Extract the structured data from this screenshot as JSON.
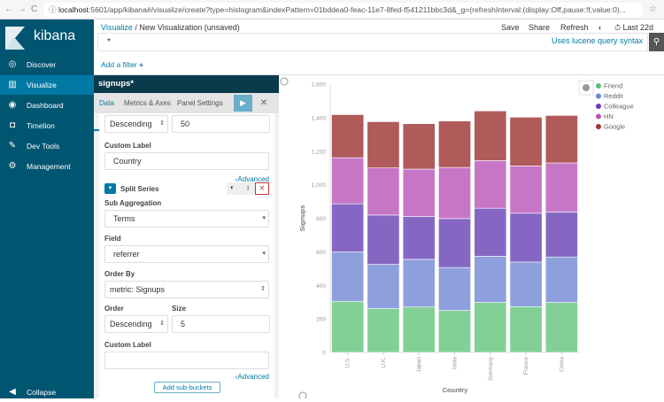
{
  "browser": {
    "url_host": "localhost",
    "url_rest": ":5601/app/kibana#/visualize/create?type=histogram&indexPattern=01bddea0-feac-11e7-8fed-f541211bbc3d&_g=(refreshInterval:(display:Off,pause:!f,value:0)..."
  },
  "sidebar": {
    "brand": "kibana",
    "items": [
      {
        "label": "Discover",
        "icon": "compass-icon"
      },
      {
        "label": "Visualize",
        "icon": "bar-chart-icon",
        "active": true
      },
      {
        "label": "Dashboard",
        "icon": "dashboard-icon"
      },
      {
        "label": "Timelion",
        "icon": "timelion-icon"
      },
      {
        "label": "Dev Tools",
        "icon": "wrench-icon"
      },
      {
        "label": "Management",
        "icon": "gear-icon"
      }
    ],
    "collapse": "Collapse"
  },
  "header": {
    "breadcrumb_link": "Visualize",
    "breadcrumb_sep": "/",
    "breadcrumb_current": "New Visualization (unsaved)",
    "save": "Save",
    "share": "Share",
    "refresh": "Refresh",
    "time": "Last 22d",
    "query": "*",
    "lucene": "Uses lucene query syntax",
    "add_filter": "Add a filter"
  },
  "editor": {
    "index": "signups*",
    "tabs": [
      "Data",
      "Metrics & Axes",
      "Panel Settings"
    ],
    "bucket1": {
      "order": "Descending",
      "size": "50",
      "custom_label_title": "Custom Label",
      "custom_label": "Country",
      "advanced": "Advanced"
    },
    "split": {
      "title": "Split Series",
      "sub_agg_label": "Sub Aggregation",
      "sub_agg": "Terms",
      "field_label": "Field",
      "field": "referrer",
      "order_by_label": "Order By",
      "order_by": "metric: Signups",
      "order_label": "Order",
      "order": "Descending",
      "size_label": "Size",
      "size": "5",
      "custom_label_title": "Custom Label",
      "custom_label": "",
      "advanced": "Advanced"
    },
    "add_sub_buckets": "Add sub-buckets"
  },
  "chart_data": {
    "type": "bar",
    "stacked": true,
    "xlabel": "Country",
    "ylabel": "Signups",
    "ylim": [
      0,
      1600
    ],
    "yticks": [
      "0",
      "200",
      "400",
      "600",
      "800",
      "1,000",
      "1,200",
      "1,400",
      "1,600"
    ],
    "categories": [
      "U.S.",
      "U.K.",
      "Japan",
      "India",
      "Germany",
      "France",
      "China"
    ],
    "legend_position": "top-right",
    "series": [
      {
        "name": "Friend",
        "color": "#82d096",
        "legend_color": "#57c17b",
        "values": [
          305,
          261,
          271,
          250,
          298,
          273,
          298
        ]
      },
      {
        "name": "Reddit",
        "color": "#8ea0dc",
        "legend_color": "#6f87d8",
        "values": [
          294,
          264,
          284,
          256,
          275,
          266,
          271
        ]
      },
      {
        "name": "Colleague",
        "color": "#8567c3",
        "legend_color": "#663db8",
        "values": [
          287,
          294,
          256,
          292,
          287,
          291,
          268
        ]
      },
      {
        "name": "HN",
        "color": "#c776c6",
        "legend_color": "#bc52bc",
        "values": [
          275,
          281,
          282,
          305,
          284,
          282,
          293
        ]
      },
      {
        "name": "Google",
        "color": "#b05a5a",
        "legend_color": "#9e3533",
        "values": [
          257,
          276,
          271,
          277,
          296,
          291,
          283
        ]
      }
    ]
  }
}
